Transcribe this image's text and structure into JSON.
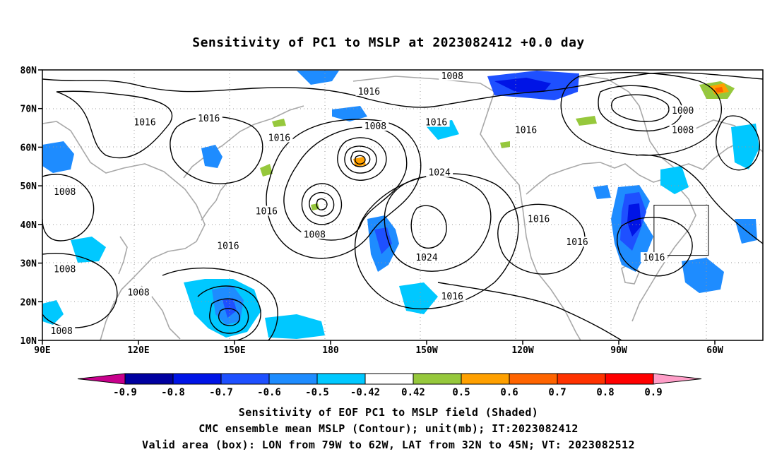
{
  "title": "Sensitivity of PC1 to MSLP at 2023082412 +0.0 day",
  "map": {
    "lat_ticks": [
      "10N",
      "20N",
      "30N",
      "40N",
      "50N",
      "60N",
      "70N",
      "80N"
    ],
    "lon_ticks": [
      "90E",
      "120E",
      "150E",
      "180",
      "150W",
      "120W",
      "90W",
      "60W"
    ],
    "contour_labels": [
      {
        "text": "1016",
        "lon": 122,
        "lat": 66
      },
      {
        "text": "1016",
        "lon": 142,
        "lat": 67
      },
      {
        "text": "1016",
        "lon": 164,
        "lat": 62
      },
      {
        "text": "1016",
        "lon": 192,
        "lat": 74
      },
      {
        "text": "1008",
        "lon": 194,
        "lat": 65
      },
      {
        "text": "1016",
        "lon": 213,
        "lat": 66
      },
      {
        "text": "1008",
        "lon": 218,
        "lat": 78
      },
      {
        "text": "1024",
        "lon": 214,
        "lat": 53
      },
      {
        "text": "1016",
        "lon": 241,
        "lat": 64
      },
      {
        "text": "1000",
        "lon": 290,
        "lat": 69
      },
      {
        "text": "1008",
        "lon": 290,
        "lat": 64
      },
      {
        "text": "1008",
        "lon": 97,
        "lat": 48
      },
      {
        "text": "1016",
        "lon": 160,
        "lat": 43
      },
      {
        "text": "1008",
        "lon": 175,
        "lat": 37
      },
      {
        "text": "1016",
        "lon": 148,
        "lat": 34
      },
      {
        "text": "1016",
        "lon": 245,
        "lat": 41
      },
      {
        "text": "1016",
        "lon": 257,
        "lat": 35
      },
      {
        "text": "1016",
        "lon": 281,
        "lat": 31
      },
      {
        "text": "1024",
        "lon": 210,
        "lat": 31
      },
      {
        "text": "1016",
        "lon": 218,
        "lat": 21
      },
      {
        "text": "1008",
        "lon": 97,
        "lat": 28
      },
      {
        "text": "1008",
        "lon": 120,
        "lat": 22
      },
      {
        "text": "1008",
        "lon": 96,
        "lat": 12
      }
    ],
    "valid_box": {
      "lon_min": 281,
      "lon_max": 298,
      "lat_min": 32,
      "lat_max": 45
    }
  },
  "colorbar": {
    "labels": [
      "-0.9",
      "-0.8",
      "-0.7",
      "-0.6",
      "-0.5",
      "-0.42",
      "0.42",
      "0.5",
      "0.6",
      "0.7",
      "0.8",
      "0.9"
    ],
    "colors": {
      "below": "#c8008c",
      "bins": [
        "#0000a0",
        "#0014e6",
        "#1e50ff",
        "#1e8cff",
        "#00c8ff",
        "#ffffff",
        "#96c83c",
        "#ffa000",
        "#ff6400",
        "#ff3200",
        "#ff0000"
      ],
      "above": "#ff9ec8"
    }
  },
  "captions": {
    "line1": "Sensitivity of EOF PC1 to MSLP field (Shaded)",
    "line2": "CMC ensemble mean MSLP (Contour); unit(mb); IT:2023082412",
    "line3": "Valid area (box): LON from 79W to 62W, LAT from 32N to 45N; VT: 2023082512"
  }
}
